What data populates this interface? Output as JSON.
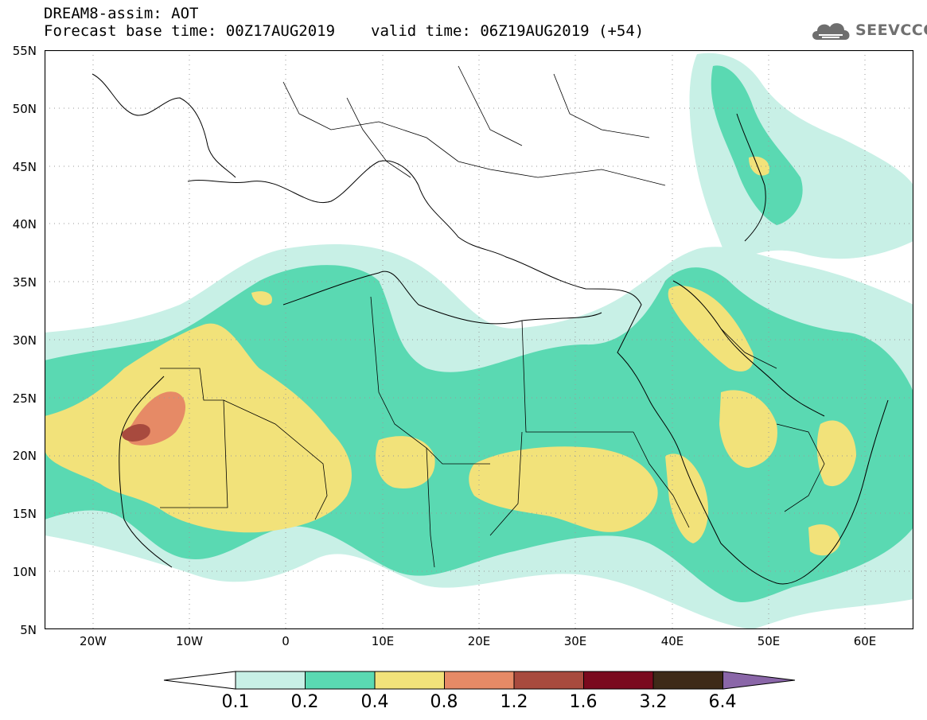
{
  "header": {
    "line1": "DREAM8-assim: AOT",
    "base_time": "Forecast base time: 00Z17AUG2019",
    "valid_time": "valid time: 06Z19AUG2019 (+54)"
  },
  "logo": {
    "text": "SEEVCCC",
    "icon": "cloud-icon"
  },
  "axes": {
    "lat_labels": [
      "55N",
      "50N",
      "45N",
      "40N",
      "35N",
      "30N",
      "25N",
      "20N",
      "15N",
      "10N",
      "5N"
    ],
    "lon_labels": [
      "20W",
      "10W",
      "0",
      "10E",
      "20E",
      "30E",
      "40E",
      "50E",
      "60E"
    ],
    "lat_range": [
      5,
      55
    ],
    "lon_range": [
      -25,
      65
    ]
  },
  "colorbar": {
    "labels": [
      "0.1",
      "0.2",
      "0.4",
      "0.8",
      "1.2",
      "1.6",
      "3.2",
      "6.4"
    ],
    "colors": [
      "#ffffff",
      "#c8f0e6",
      "#5ad9b2",
      "#f2e27a",
      "#e68a66",
      "#a84a3e",
      "#7a0a1e",
      "#3e2a18",
      "#8a66a8"
    ]
  },
  "colors": {
    "level1": "#c8f0e6",
    "level2": "#5ad9b2",
    "level3": "#f2e27a",
    "level4": "#e68a66",
    "level5": "#a84a3e",
    "border": "#000000"
  }
}
